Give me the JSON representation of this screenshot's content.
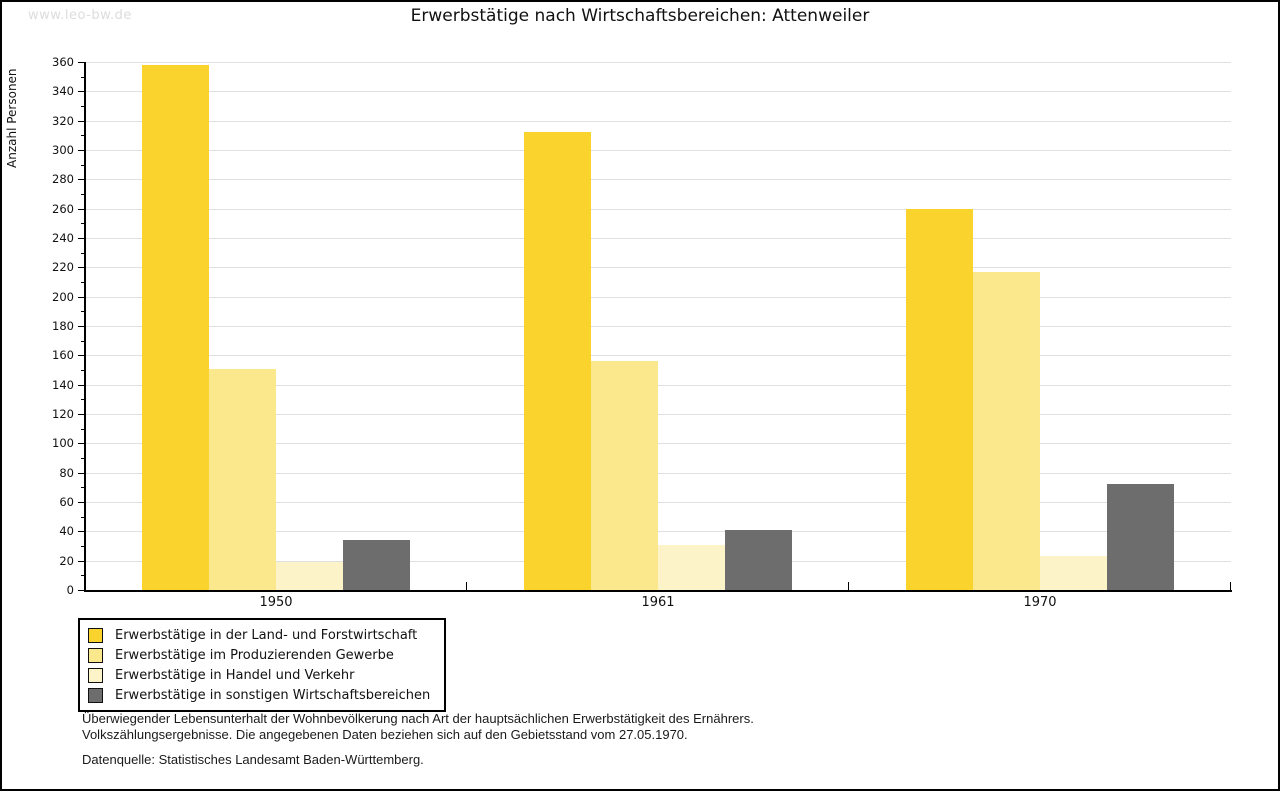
{
  "watermark": "www.leo-bw.de",
  "title": "Erwerbstätige nach Wirtschaftsbereichen: Attenweiler",
  "chart_data": {
    "type": "bar",
    "title": "Erwerbstätige nach Wirtschaftsbereichen: Attenweiler",
    "xlabel": "",
    "ylabel": "Anzahl Personen",
    "ylim": [
      0,
      360
    ],
    "ytick_step": 20,
    "yminor_step": 10,
    "grid": true,
    "legend_position": "bottom-left",
    "categories": [
      "1950",
      "1961",
      "1970"
    ],
    "series": [
      {
        "name": "Erwerbstätige in der Land- und Forstwirtschaft",
        "color": "#FBD32D",
        "values": [
          358,
          312,
          260
        ]
      },
      {
        "name": "Erwerbstätige im Produzierenden Gewerbe",
        "color": "#FBE78C",
        "values": [
          151,
          156,
          217
        ]
      },
      {
        "name": "Erwerbstätige in Handel und Verkehr",
        "color": "#FCF4C8",
        "values": [
          19,
          31,
          23
        ]
      },
      {
        "name": "Erwerbstätige in sonstigen Wirtschaftsbereichen",
        "color": "#6D6D6D",
        "values": [
          34,
          41,
          72
        ]
      }
    ]
  },
  "footer": {
    "note_line1": "Überwiegender Lebensunterhalt der Wohnbevölkerung nach Art der hauptsächlichen Erwerbstätigkeit des Ernährers.",
    "note_line2": "Volkszählungsergebnisse. Die angegebenen Daten beziehen sich auf den Gebietsstand vom 27.05.1970.",
    "source": "Datenquelle: Statistisches Landesamt Baden-Württemberg."
  },
  "colors": {
    "background": "#FFFFFF",
    "frame": "#000000",
    "gridline": "#E0E0E0",
    "axis": "#000000",
    "watermark": "#DCDCDC",
    "text": "#1A1A1A"
  }
}
